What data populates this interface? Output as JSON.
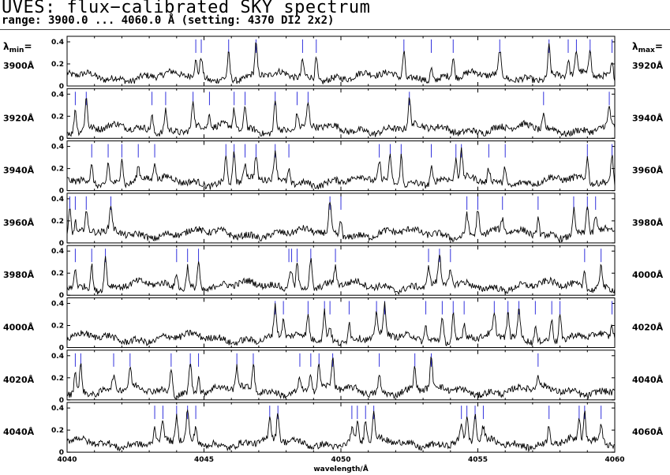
{
  "title": "UVES: flux−calibrated SKY spectrum",
  "subtitle": "range: 3900.0 ... 4060.0 Å (setting: 4370 DI2 2x2)",
  "lambda_min_label": "λ",
  "lambda_min_sub": "min",
  "lambda_max_label": "λ",
  "lambda_max_sub": "max",
  "equals": "=",
  "chart_data": {
    "type": "line",
    "xlabel": "wavelength/Å",
    "ylim": [
      0,
      0.45
    ],
    "yticks": [
      "0",
      "0.2",
      "0.4"
    ],
    "grid": false,
    "panels": [
      {
        "lambda_min": "3900Å",
        "lambda_max": "3920Å",
        "x": [
          3900,
          3920
        ],
        "line_markers": [
          3904.7,
          3904.9,
          3905.9,
          3906.9,
          3908.6,
          3909.1,
          3912.3,
          3913.3,
          3914.1,
          3915.8,
          3917.6,
          3918.3,
          3918.6,
          3919.1,
          3919.9
        ]
      },
      {
        "lambda_min": "3920Å",
        "lambda_max": "3940Å",
        "x": [
          3920,
          3940
        ],
        "line_markers": [
          3920.3,
          3920.7,
          3923.1,
          3923.6,
          3924.6,
          3925.2,
          3926.1,
          3926.5,
          3927.6,
          3928.4,
          3928.8,
          3932.5,
          3937.4,
          3939.8
        ]
      },
      {
        "lambda_min": "3940Å",
        "lambda_max": "3960Å",
        "x": [
          3940,
          3960
        ],
        "line_markers": [
          3940.9,
          3941.5,
          3942.0,
          3942.6,
          3943.2,
          3945.8,
          3946.1,
          3946.5,
          3946.9,
          3947.6,
          3948.1,
          3951.4,
          3951.8,
          3952.2,
          3953.3,
          3954.2,
          3954.4,
          3955.4,
          3956.0,
          3959.0,
          3959.9
        ]
      },
      {
        "lambda_min": "3960Å",
        "lambda_max": "3980Å",
        "x": [
          3960,
          3980
        ],
        "line_markers": [
          3960.1,
          3960.3,
          3960.7,
          3961.6,
          3969.6,
          3970.0,
          3974.6,
          3975.0,
          3975.9,
          3977.2,
          3978.5,
          3979.0,
          3979.3
        ]
      },
      {
        "lambda_min": "3980Å",
        "lambda_max": "4000Å",
        "x": [
          3980,
          4000
        ],
        "line_markers": [
          3980.3,
          3980.9,
          3981.4,
          3984.0,
          3984.4,
          3984.8,
          3988.1,
          3988.2,
          3988.4,
          3988.9,
          3989.8,
          3993.2,
          3993.6,
          3994.0,
          3998.9,
          3999.5
        ]
      },
      {
        "lambda_min": "4000Å",
        "lambda_max": "4020Å",
        "x": [
          4000,
          4020
        ],
        "line_markers": [
          4007.6,
          4007.9,
          4008.8,
          4009.4,
          4009.6,
          4010.3,
          4011.3,
          4011.6,
          4013.1,
          4013.7,
          4014.1,
          4014.5,
          4015.6,
          4016.1,
          4016.5,
          4017.1,
          4017.7,
          4018.0,
          4019.9
        ]
      },
      {
        "lambda_min": "4020Å",
        "lambda_max": "4040Å",
        "x": [
          4020,
          4040
        ],
        "line_markers": [
          4020.3,
          4020.5,
          4021.7,
          4022.3,
          4023.8,
          4024.5,
          4024.8,
          4026.2,
          4026.8,
          4028.5,
          4028.9,
          4029.2,
          4029.7,
          4031.4,
          4032.7,
          4033.3,
          4037.2
        ]
      },
      {
        "lambda_min": "4040Å",
        "lambda_max": "4060Å",
        "x": [
          4040,
          4060
        ],
        "line_markers": [
          4043.2,
          4043.5,
          4044.0,
          4044.4,
          4044.7,
          4047.4,
          4047.7,
          4050.4,
          4050.6,
          4050.9,
          4051.2,
          4054.4,
          4054.6,
          4054.9,
          4055.2,
          4057.6,
          4058.7,
          4058.9,
          4059.5
        ]
      }
    ],
    "xaxis_ticks": [
      "4040",
      "4045",
      "4050",
      "4055",
      "4060"
    ],
    "marker_color": "#3333dd",
    "line_color": "#000000"
  }
}
